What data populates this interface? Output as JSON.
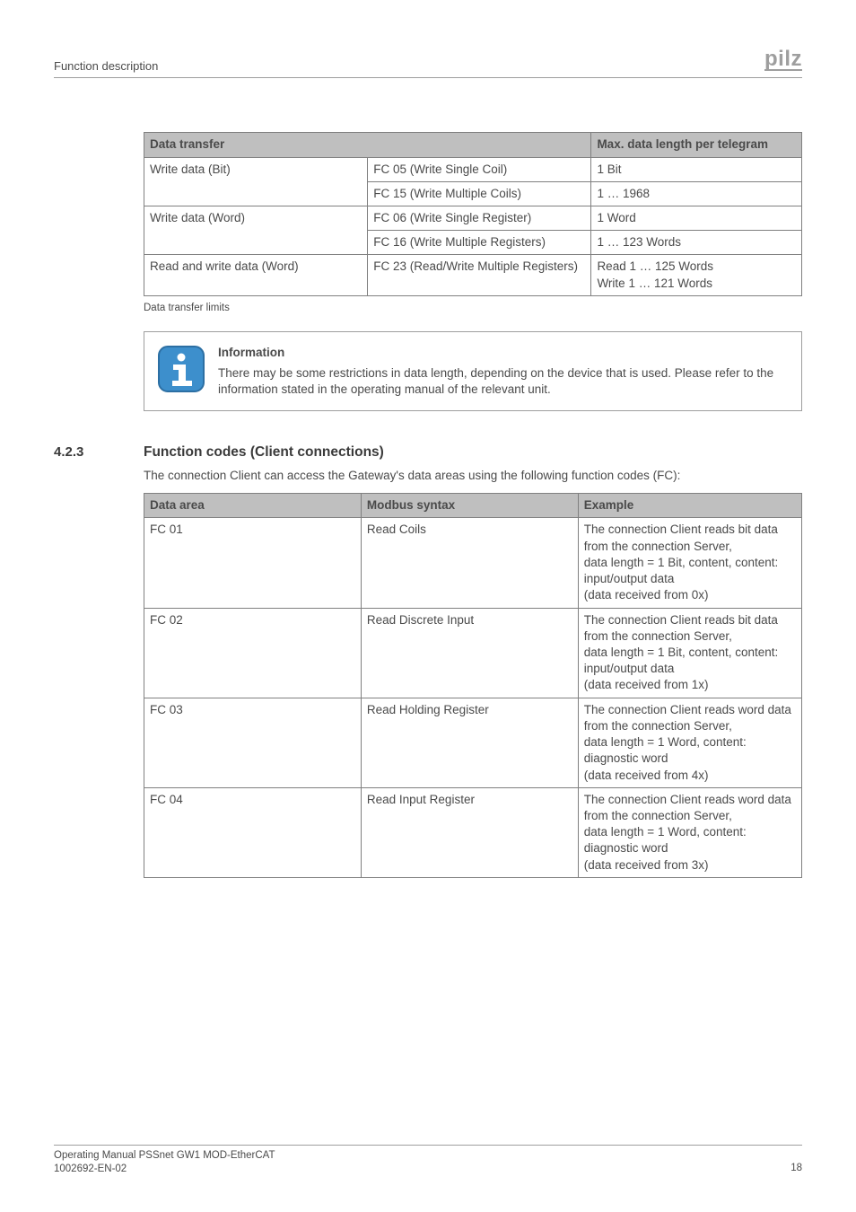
{
  "header": {
    "breadcrumb": "Function description",
    "logo_text": "pilz"
  },
  "table1": {
    "col_widths_pct": [
      34,
      34,
      32
    ],
    "headers": [
      "Data transfer",
      "",
      "Max. data length per telegram"
    ],
    "rows": [
      {
        "c0": "Write data (Bit)",
        "c0_rowspan": 2,
        "c1": "FC 05 (Write Single Coil)",
        "c2": "1 Bit"
      },
      {
        "c1": "FC 15 (Write Multiple Coils)",
        "c2": "1 … 1968"
      },
      {
        "c0": "Write data (Word)",
        "c0_rowspan": 2,
        "c1": "FC 06 (Write Single Register)",
        "c2": "1 Word"
      },
      {
        "c1": "FC 16 (Write Multiple Registers)",
        "c2": "1 … 123 Words"
      },
      {
        "c0": "Read and write data (Word)",
        "c1": "FC 23 (Read/Write Multiple Registers)",
        "c2": "Read 1 … 125 Words\nWrite 1 … 121 Words"
      }
    ],
    "caption": "Data transfer limits"
  },
  "info_box": {
    "title": "Information",
    "body": "There may be some restrictions in data length, depending on the device that is used. Please refer to the information stated in the operating manual of the relevant unit."
  },
  "section": {
    "number": "4.2.3",
    "title": "Function codes (Client connections)",
    "intro": "The connection Client can access the Gateway's data areas using the following function codes (FC):"
  },
  "table2": {
    "col_widths_pct": [
      33,
      33,
      34
    ],
    "headers": [
      "Data area",
      "Modbus syntax",
      "Example"
    ],
    "rows": [
      {
        "c0": "FC 01",
        "c1": "Read Coils",
        "c2": "The connection Client reads bit data from the connection Server,\ndata length = 1 Bit, content, content: input/output data\n(data received from 0x)"
      },
      {
        "c0": "FC 02",
        "c1": "Read Discrete Input",
        "c2": "The connection Client reads bit data from the connection Server,\ndata length = 1 Bit, content, content: input/output data\n(data received from 1x)"
      },
      {
        "c0": "FC 03",
        "c1": "Read Holding Register",
        "c2": "The connection Client reads word data from the connection Server,\ndata length = 1 Word, content: diagnostic word\n(data received from 4x)"
      },
      {
        "c0": "FC 04",
        "c1": "Read Input Register",
        "c2": "The connection Client reads word data from the connection Server,\ndata length = 1 Word, content: diagnostic word\n(data received from 3x)"
      }
    ]
  },
  "footer": {
    "line1": "Operating Manual PSSnet GW1 MOD-EtherCAT",
    "line2": "1002692-EN-02",
    "page": "18"
  },
  "icons": {
    "info_icon": "info-icon"
  },
  "colors": {
    "text": "#4a4a4a",
    "table_border": "#808080",
    "table_header_bg": "#bfbfbf",
    "rule": "#9e9e9e",
    "logo": "#9e9e9e",
    "info_blue": "#3d8fcc"
  }
}
